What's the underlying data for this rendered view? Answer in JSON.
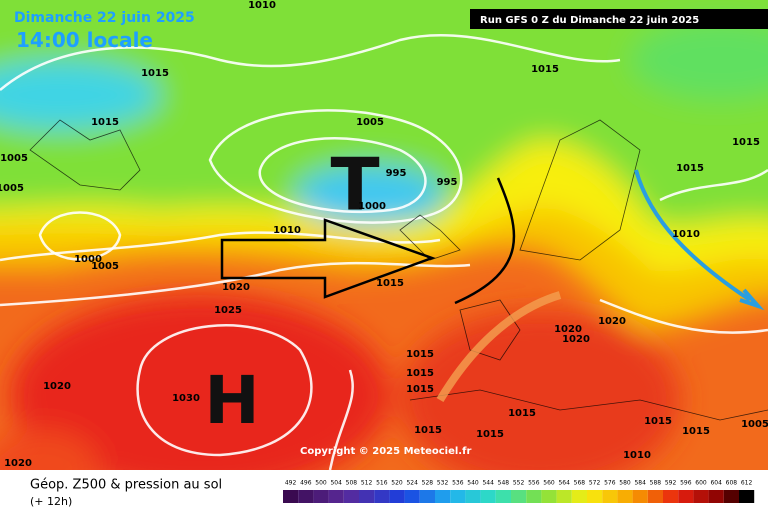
{
  "header": {
    "date": "Dimanche 22 juin 2025",
    "time": "14:00 locale",
    "run": "Run GFS 0 Z du Dimanche 22 juin 2025"
  },
  "map": {
    "low_label": "T",
    "high_label": "H",
    "copyright": "Copyright © 2025 Meteociel.fr",
    "isobar_labels": [
      "1010",
      "1015",
      "1015",
      "1015",
      "1005",
      "1005",
      "1005",
      "995",
      "995",
      "1000",
      "1015",
      "1015",
      "1010",
      "1000",
      "1005",
      "1010",
      "1020",
      "1015",
      "1025",
      "1020",
      "1020",
      "1020",
      "1015",
      "1015",
      "1015",
      "1020",
      "1030",
      "1015",
      "1015",
      "1015",
      "1015",
      "1015",
      "1005",
      "1010",
      "1020"
    ]
  },
  "footer": {
    "title": "Géop. Z500 & pression au sol",
    "subtitle": "(+ 12h)",
    "scale": [
      492,
      496,
      500,
      504,
      508,
      512,
      516,
      520,
      524,
      528,
      532,
      536,
      540,
      544,
      548,
      552,
      556,
      560,
      564,
      568,
      572,
      576,
      580,
      584,
      588,
      592,
      596,
      600,
      604,
      608,
      612
    ]
  }
}
